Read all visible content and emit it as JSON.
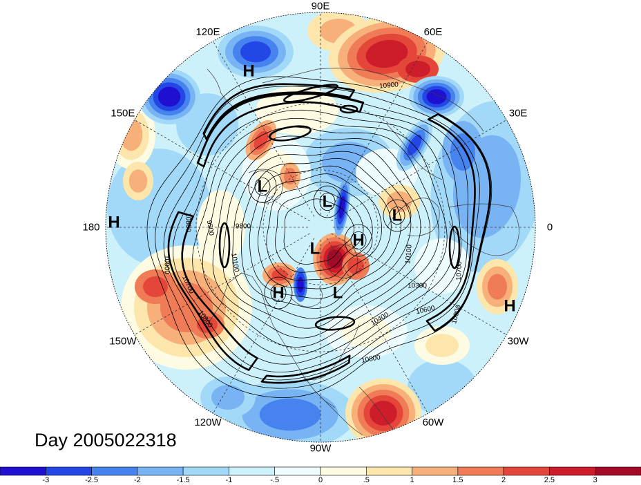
{
  "title": "Day 2005022318",
  "longitude_labels": [
    "90E",
    "60E",
    "30E",
    "0",
    "30W",
    "60W",
    "90W",
    "120W",
    "150W",
    "180",
    "150E",
    "120E"
  ],
  "pressure_centers": {
    "highs": [
      "H",
      "H",
      "H",
      "H",
      "H"
    ],
    "lows": [
      "L",
      "L",
      "L",
      "L",
      "L"
    ]
  },
  "contour_labels": [
    "10900",
    "10300",
    "10600",
    "10800",
    "10700",
    "10800",
    "10900",
    "10900",
    "10700",
    "10100",
    "9800",
    "9500",
    "10100",
    "10400",
    "10800"
  ],
  "colorbar": {
    "labels": [
      "-3",
      "-2.5",
      "-2",
      "-1.5",
      "-1",
      "-.5",
      "0",
      ".5",
      "1",
      "1.5",
      "2",
      "2.5",
      "3"
    ],
    "colors": [
      "#1f0fd0",
      "#2346e6",
      "#4683ee",
      "#78b3f4",
      "#a3d9f8",
      "#cdf1fb",
      "#effcfd",
      "#fdfbe2",
      "#fde6ab",
      "#f7b07a",
      "#ef7c57",
      "#e5463a",
      "#ce1d2a",
      "#a30a28"
    ]
  }
}
